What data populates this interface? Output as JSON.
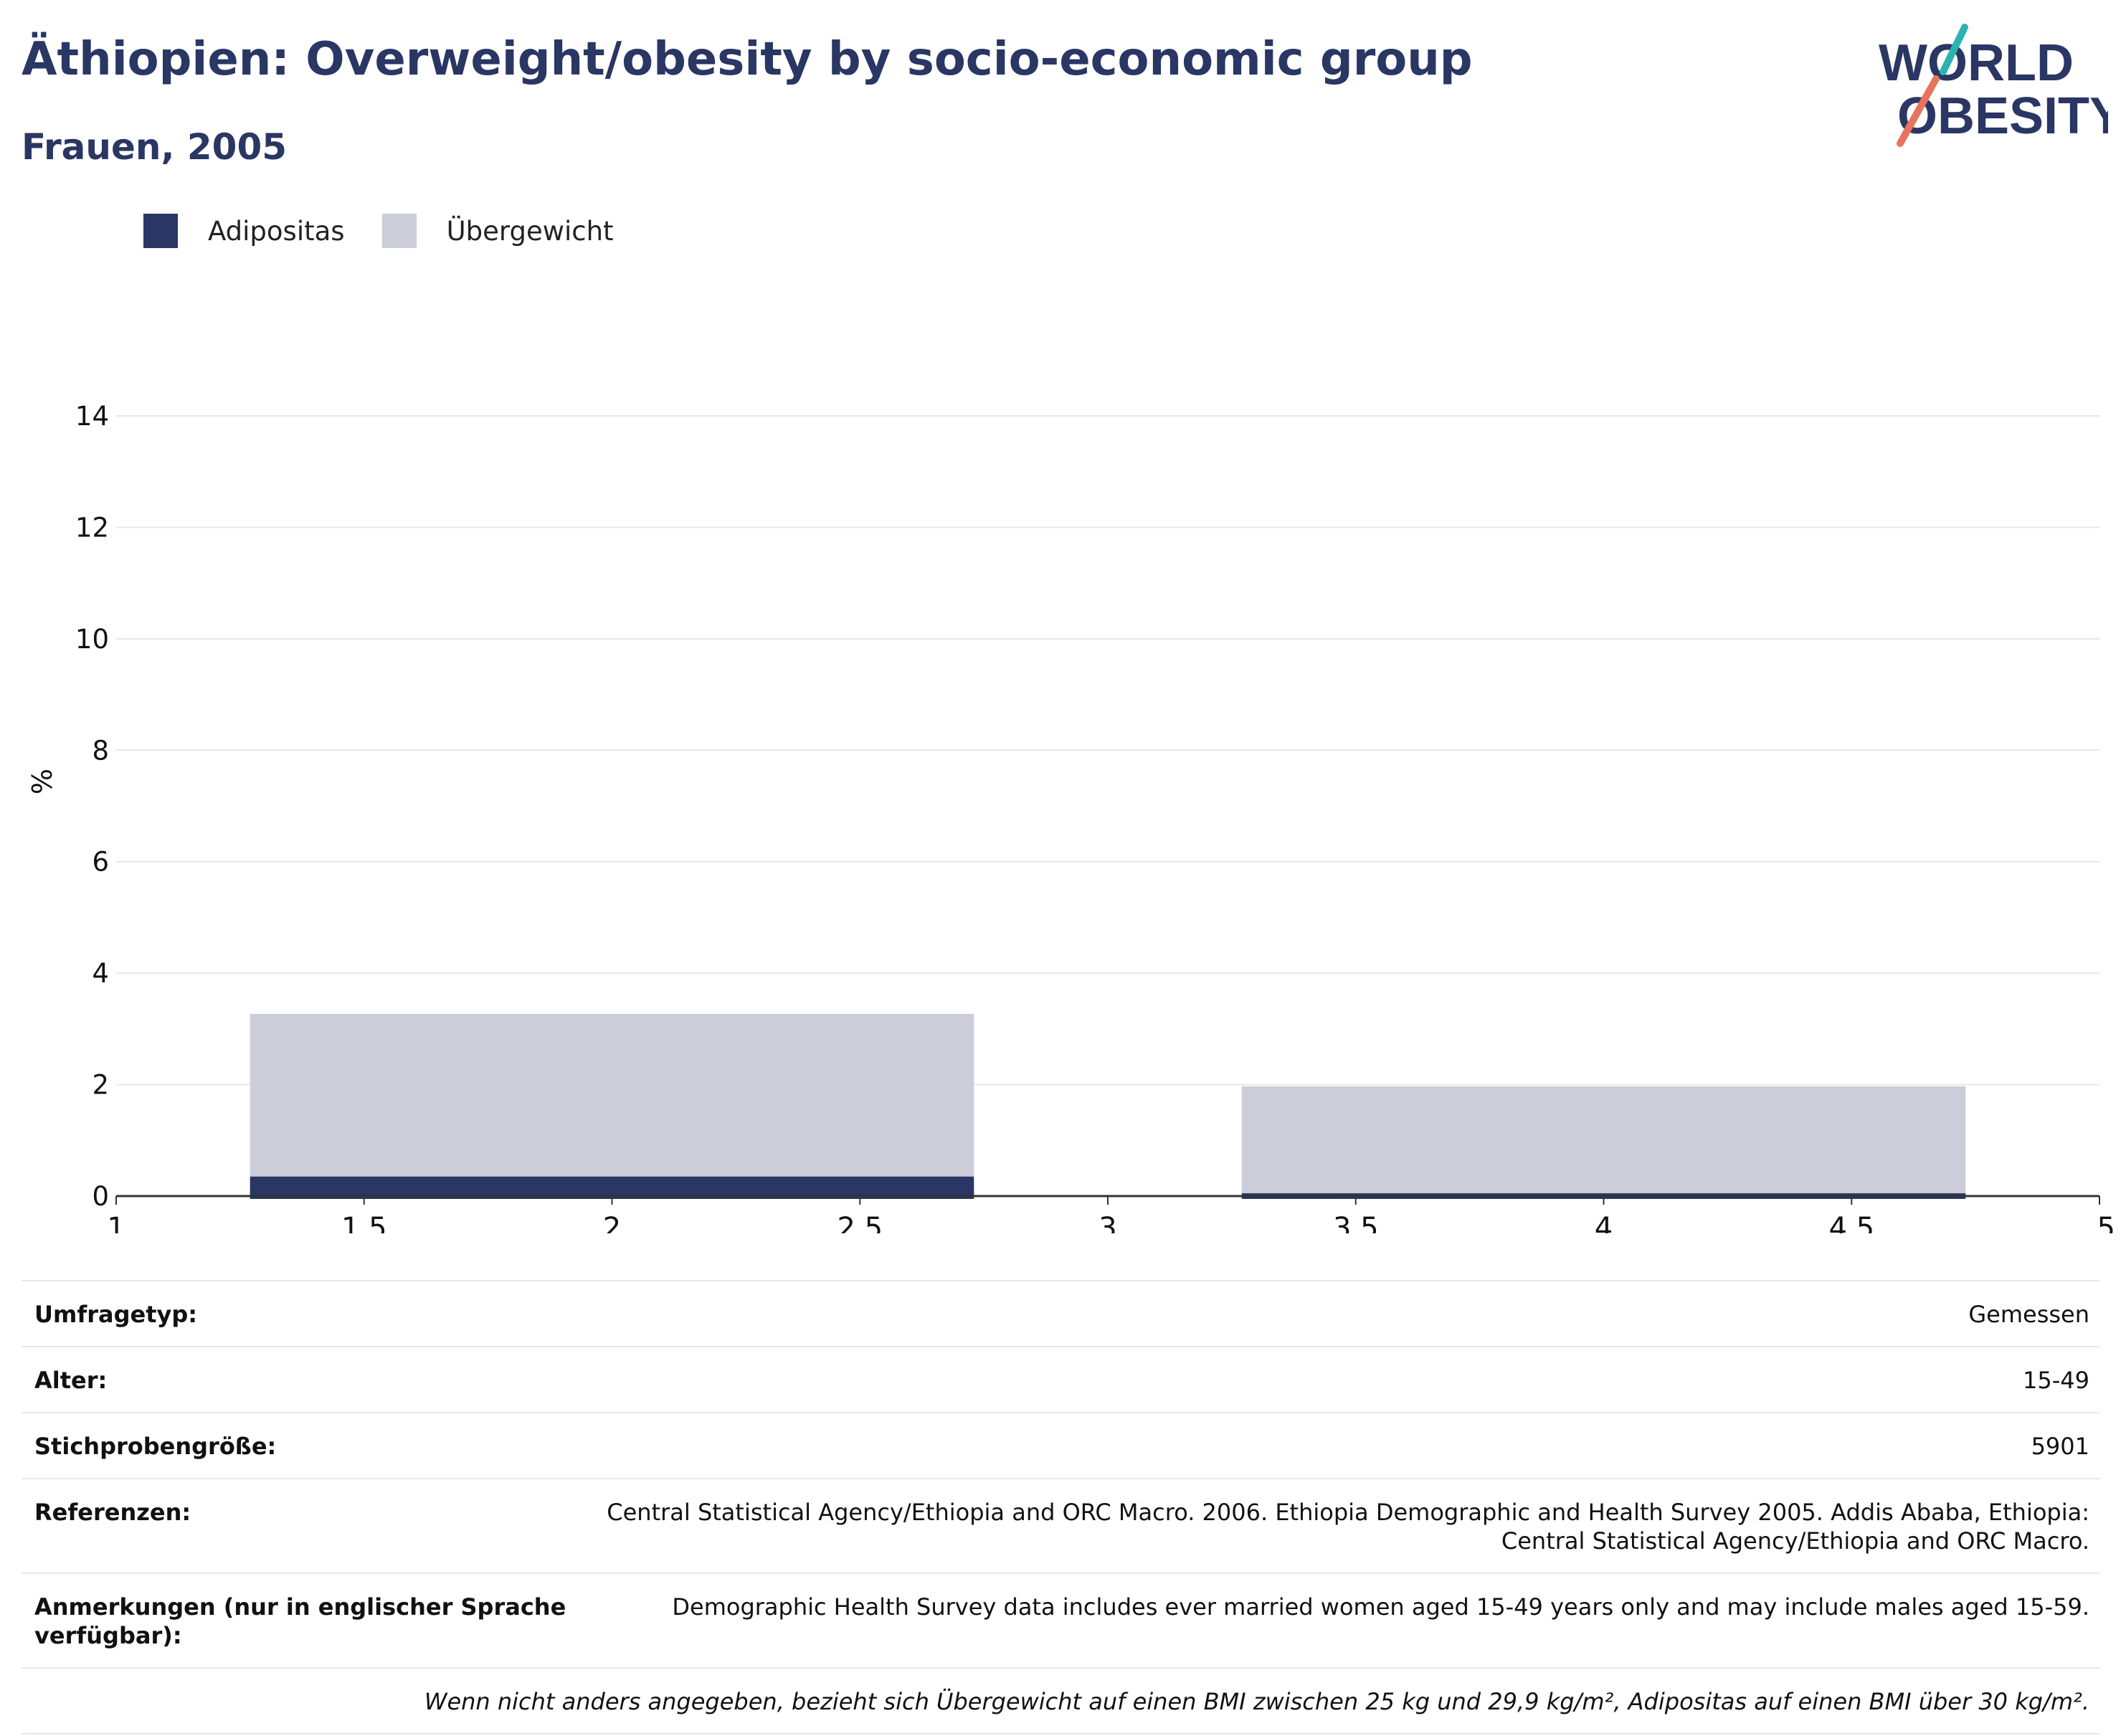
{
  "header": {
    "title": "Äthiopien: Overweight/obesity by socio-economic group",
    "subtitle": "Frauen, 2005"
  },
  "logo": {
    "line1": "WORLD",
    "line2": "OBESITY"
  },
  "legend": [
    {
      "label": "Adipositas",
      "color": "#2a3663"
    },
    {
      "label": "Übergewicht",
      "color": "#cbcdd8"
    }
  ],
  "chart_data": {
    "type": "bar",
    "stacked": true,
    "ylabel": "%",
    "xlabel": "",
    "xlim": [
      1,
      5
    ],
    "ylim": [
      0,
      14
    ],
    "x_ticks": [
      1,
      1.5,
      2,
      2.5,
      3,
      3.5,
      4,
      4.5,
      5
    ],
    "y_ticks": [
      0,
      2,
      4,
      6,
      8,
      10,
      12,
      14
    ],
    "grid": true,
    "legend_placement": "top-left",
    "bars": [
      {
        "x_start": 1.27,
        "x_end": 2.73,
        "obesity": 0.35,
        "overweight_total": 3.27
      },
      {
        "x_start": 3.27,
        "x_end": 4.73,
        "obesity": 0.05,
        "overweight_total": 1.97
      }
    ],
    "series": [
      {
        "name": "Adipositas",
        "color": "#2a3663",
        "values": [
          0.35,
          0.05
        ]
      },
      {
        "name": "Übergewicht",
        "color": "#cbcdd8",
        "values": [
          2.92,
          1.92
        ]
      }
    ]
  },
  "info": {
    "survey_type_label": "Umfragetyp:",
    "survey_type_value": "Gemessen",
    "age_label": "Alter:",
    "age_value": "15-49",
    "sample_label": "Stichprobengröße:",
    "sample_value": "5901",
    "refs_label": "Referenzen:",
    "refs_value_1": "Central Statistical Agency/Ethiopia and ORC Macro. 2006. Ethiopia Demographic and Health Survey 2005. Addis Ababa, Ethiopia:",
    "refs_value_2": "Central Statistical Agency/Ethiopia and ORC Macro.",
    "notes_label_1": "Anmerkungen (nur in englischer Sprache",
    "notes_label_2": "verfügbar):",
    "notes_value": "Demographic Health Survey data includes ever married women aged 15-49 years only and may include males aged 15-59.",
    "footnote": "Wenn nicht anders angegeben, bezieht sich Übergewicht auf einen BMI zwischen 25 kg und 29,9 kg/m², Adipositas auf einen BMI über 30 kg/m²."
  }
}
